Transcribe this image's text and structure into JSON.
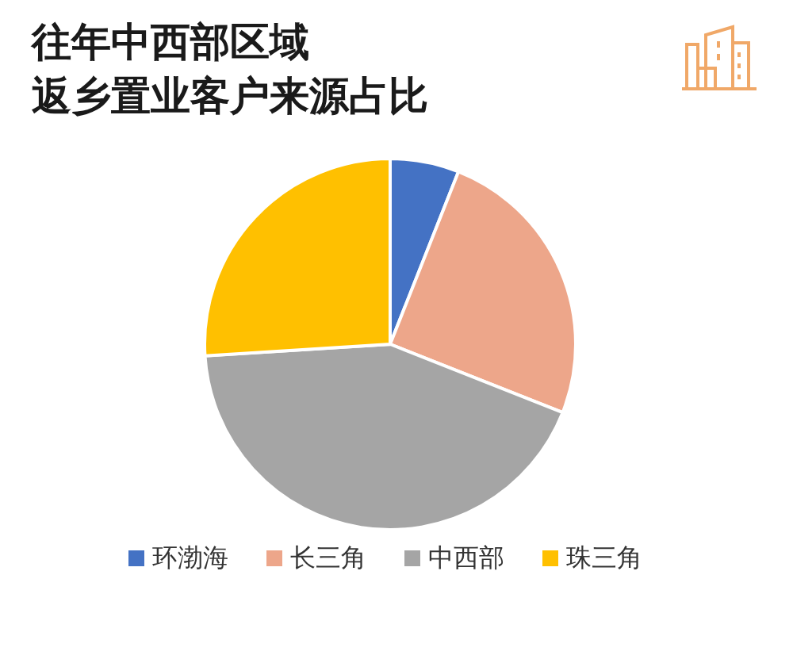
{
  "chart_data": {
    "type": "pie",
    "title": "往年中西部区域",
    "subtitle": "返乡置业客户来源占比",
    "categories": [
      "环渤海",
      "长三角",
      "中西部",
      "珠三角"
    ],
    "values": [
      6,
      25,
      43,
      26
    ],
    "colors": [
      "#4472c4",
      "#eda68a",
      "#a5a5a5",
      "#ffc000"
    ],
    "legend": "bottom"
  }
}
